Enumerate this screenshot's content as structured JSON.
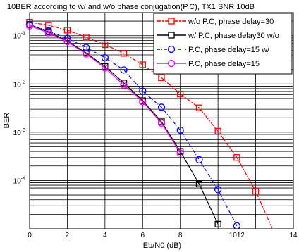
{
  "chart_data": {
    "type": "line",
    "title": "BER according to w/ and w/o phase conjugation(P.C), TX1 SNR 10dB",
    "title_prefix": "10",
    "xlabel": "Eb/N0 (dB)",
    "ylabel": "BER",
    "xlim": [
      0,
      14
    ],
    "ylim": [
      1e-05,
      0.3
    ],
    "yscale": "log",
    "grid": true,
    "x_ticks": [
      "0",
      "2",
      "4",
      "6",
      "8",
      "1012",
      "14"
    ],
    "x_tick_values": [
      0,
      2,
      4,
      6,
      8,
      11,
      14
    ],
    "y_ticks": [
      {
        "base": "10",
        "exp": "-1",
        "value": 0.1
      },
      {
        "base": "10",
        "exp": "-2",
        "value": 0.01
      },
      {
        "base": "10",
        "exp": "-3",
        "value": 0.001
      },
      {
        "base": "10",
        "exp": "-4",
        "value": 0.0001
      }
    ],
    "legend_position": "top-right",
    "series": [
      {
        "name": "w/o P.C, phase delay=30",
        "color": "#ff0000",
        "marker": "square",
        "dash": "6,2,2,2",
        "x": [
          0,
          1,
          2,
          3,
          4,
          5,
          6,
          7,
          8,
          9,
          10,
          11,
          12,
          13
        ],
        "y": [
          0.19,
          0.165,
          0.13,
          0.093,
          0.065,
          0.043,
          0.025,
          0.0135,
          0.0062,
          0.0032,
          0.00105,
          0.0003,
          6e-05,
          8e-06
        ]
      },
      {
        "name": "w/ P.C, phase delay30 w/o",
        "color": "#000000",
        "marker": "square",
        "dash": "",
        "x": [
          0,
          1,
          2,
          3,
          4,
          5,
          6,
          7,
          8,
          9,
          10,
          11
        ],
        "y": [
          0.17,
          0.12,
          0.078,
          0.044,
          0.023,
          0.0105,
          0.0045,
          0.00165,
          0.0004,
          8.5e-05,
          1.25e-05,
          1.5e-06
        ]
      },
      {
        "name": "P.C, phase delay=15 w/",
        "color": "#0000ff",
        "marker": "circle",
        "dash": "5,2,1,2",
        "x": [
          0,
          1,
          2,
          3,
          4,
          5,
          6,
          7,
          8,
          9,
          10,
          11,
          12
        ],
        "y": [
          0.17,
          0.125,
          0.088,
          0.057,
          0.035,
          0.0195,
          0.0071,
          0.0033,
          0.0011,
          0.00027,
          6.5e-05,
          1.15e-05,
          1.4e-06
        ]
      },
      {
        "name": "P.C, phase delay=15",
        "color": "#ff00ff",
        "marker": "circle",
        "dash": "",
        "x": [
          0,
          1,
          2,
          3,
          4,
          5,
          6,
          7,
          8
        ],
        "y": [
          0.16,
          0.115,
          0.075,
          0.042,
          0.0215,
          0.0095,
          0.0043,
          0.00155,
          0.00037
        ]
      }
    ]
  }
}
